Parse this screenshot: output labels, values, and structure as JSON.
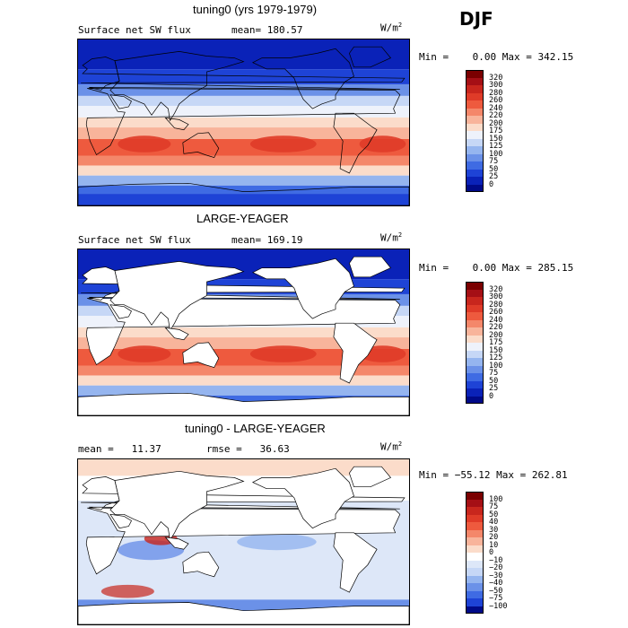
{
  "season": "DJF",
  "panels": [
    {
      "title": "tuning0 (yrs 1979-1979)",
      "left_label": "Surface net SW flux",
      "stat1": "mean= 180.57",
      "stat2": "",
      "units": "W/m",
      "units_exp": "2",
      "minmax": "Min =    0.00 Max = 342.15",
      "colorbar": {
        "labels": [
          "320",
          "300",
          "280",
          "260",
          "240",
          "220",
          "200",
          "175",
          "150",
          "125",
          "100",
          "75",
          "50",
          "25",
          "0"
        ],
        "colors": [
          "#7a0000",
          "#a50f15",
          "#c8261d",
          "#df3b28",
          "#ee5a3e",
          "#f4876a",
          "#f8b49b",
          "#fbdcca",
          "#eef2fb",
          "#c6d7f6",
          "#95b5ef",
          "#6b91e8",
          "#3f6be3",
          "#1e43d6",
          "#0a22b8",
          "#000a88"
        ]
      },
      "scheme": "sw"
    },
    {
      "title": "LARGE-YEAGER",
      "left_label": "Surface net SW flux",
      "stat1": "mean= 169.19",
      "stat2": "",
      "units": "W/m",
      "units_exp": "2",
      "minmax": "Min =    0.00 Max = 285.15",
      "colorbar": {
        "labels": [
          "320",
          "300",
          "280",
          "260",
          "240",
          "220",
          "200",
          "175",
          "150",
          "125",
          "100",
          "75",
          "50",
          "25",
          "0"
        ],
        "colors": [
          "#7a0000",
          "#a50f15",
          "#c8261d",
          "#df3b28",
          "#ee5a3e",
          "#f4876a",
          "#f8b49b",
          "#fbdcca",
          "#eef2fb",
          "#c6d7f6",
          "#95b5ef",
          "#6b91e8",
          "#3f6be3",
          "#1e43d6",
          "#0a22b8",
          "#000a88"
        ]
      },
      "scheme": "sw_ocean"
    },
    {
      "title": "tuning0 - LARGE-YEAGER",
      "left_label": "mean =   11.37",
      "stat1": "rmse =   36.63",
      "stat2": "",
      "units": "W/m",
      "units_exp": "2",
      "minmax": "Min = −55.12 Max = 262.81",
      "colorbar": {
        "labels": [
          "100",
          "75",
          "50",
          "40",
          "30",
          "20",
          "10",
          "0",
          "−10",
          "−20",
          "−30",
          "−40",
          "−50",
          "−75",
          "−100"
        ],
        "colors": [
          "#7a0000",
          "#a50f15",
          "#c8261d",
          "#df3b28",
          "#ee5a3e",
          "#f4876a",
          "#f8b49b",
          "#fbdcca",
          "#ffffff",
          "#dde7f8",
          "#c6d7f6",
          "#95b5ef",
          "#6b91e8",
          "#3f6be3",
          "#1e43d6",
          "#000a88"
        ]
      },
      "scheme": "diff"
    }
  ],
  "chart_data": [
    {
      "type": "heatmap",
      "title": "tuning0 (yrs 1979-1979)",
      "subtitle": "Surface net SW flux",
      "units": "W/m2",
      "mean": 180.57,
      "min": 0.0,
      "max": 342.15,
      "levels": [
        0,
        25,
        50,
        75,
        100,
        125,
        150,
        175,
        200,
        220,
        240,
        260,
        280,
        300,
        320
      ]
    },
    {
      "type": "heatmap",
      "title": "LARGE-YEAGER",
      "subtitle": "Surface net SW flux",
      "units": "W/m2",
      "mean": 169.19,
      "min": 0.0,
      "max": 285.15,
      "levels": [
        0,
        25,
        50,
        75,
        100,
        125,
        150,
        175,
        200,
        220,
        240,
        260,
        280,
        300,
        320
      ]
    },
    {
      "type": "heatmap",
      "title": "tuning0 - LARGE-YEAGER",
      "units": "W/m2",
      "mean": 11.37,
      "rmse": 36.63,
      "min": -55.12,
      "max": 262.81,
      "levels": [
        -100,
        -75,
        -50,
        -40,
        -30,
        -20,
        -10,
        0,
        10,
        20,
        30,
        40,
        50,
        75,
        100
      ]
    }
  ]
}
